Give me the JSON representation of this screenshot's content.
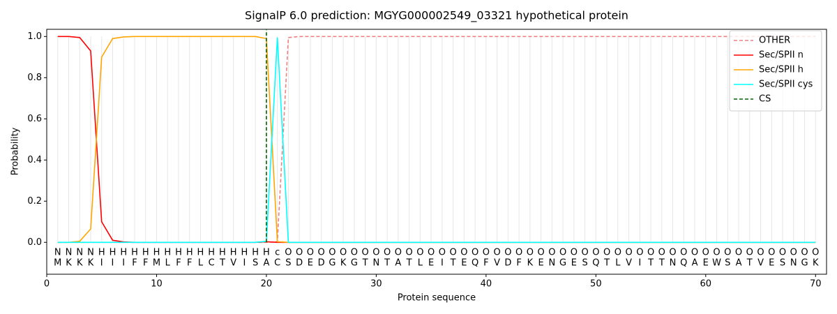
{
  "chart_data": {
    "type": "line",
    "title": "SignalP 6.0 prediction: MGYG000002549_03321 hypothetical protein",
    "xlabel": "Protein sequence",
    "ylabel": "Probability",
    "xlim": [
      0,
      71
    ],
    "ylim": [
      -0.155,
      1.035
    ],
    "xticks": [
      0,
      10,
      20,
      30,
      40,
      50,
      60,
      70
    ],
    "yticks": [
      {
        "value": 0,
        "label": "0.0"
      },
      {
        "value": 0.2,
        "label": "0.2"
      },
      {
        "value": 0.4,
        "label": "0.4"
      },
      {
        "value": 0.6,
        "label": "0.6"
      },
      {
        "value": 0.8,
        "label": "0.8"
      },
      {
        "value": 1,
        "label": "1.0"
      }
    ],
    "legend_loc": "upper right",
    "x": [
      1,
      2,
      3,
      4,
      5,
      6,
      7,
      8,
      9,
      10,
      11,
      12,
      13,
      14,
      15,
      16,
      17,
      18,
      19,
      20,
      21,
      22,
      23,
      24,
      25,
      26,
      27,
      28,
      29,
      30,
      31,
      32,
      33,
      34,
      35,
      36,
      37,
      38,
      39,
      40,
      41,
      42,
      43,
      44,
      45,
      46,
      47,
      48,
      49,
      50,
      51,
      52,
      53,
      54,
      55,
      56,
      57,
      58,
      59,
      60,
      61,
      62,
      63,
      64,
      65,
      66,
      67,
      68,
      69,
      70
    ],
    "sequence": [
      "M",
      "K",
      "K",
      "K",
      "I",
      "I",
      "I",
      "F",
      "F",
      "M",
      "L",
      "F",
      "F",
      "L",
      "C",
      "T",
      "V",
      "I",
      "S",
      "A",
      "C",
      "S",
      "D",
      "E",
      "D",
      "G",
      "K",
      "G",
      "T",
      "N",
      "T",
      "A",
      "T",
      "L",
      "E",
      "I",
      "T",
      "E",
      "Q",
      "F",
      "V",
      "D",
      "F",
      "K",
      "E",
      "N",
      "G",
      "E",
      "S",
      "Q",
      "T",
      "L",
      "V",
      "I",
      "T",
      "T",
      "N",
      "Q",
      "A",
      "E",
      "W",
      "S",
      "A",
      "T",
      "V",
      "E",
      "S",
      "N",
      "G",
      "K"
    ],
    "labels": [
      "N",
      "N",
      "N",
      "N",
      "H",
      "H",
      "H",
      "H",
      "H",
      "H",
      "H",
      "H",
      "H",
      "H",
      "H",
      "H",
      "H",
      "H",
      "H",
      "H",
      "c",
      "O",
      "O",
      "O",
      "O",
      "O",
      "O",
      "O",
      "O",
      "O",
      "O",
      "O",
      "O",
      "O",
      "O",
      "O",
      "O",
      "O",
      "O",
      "O",
      "O",
      "O",
      "O",
      "O",
      "O",
      "O",
      "O",
      "O",
      "O",
      "O",
      "O",
      "O",
      "O",
      "O",
      "O",
      "O",
      "O",
      "O",
      "O",
      "O",
      "O",
      "O",
      "O",
      "O",
      "O",
      "O",
      "O",
      "O",
      "O",
      "O"
    ],
    "label_colors": {
      "N": "#ff0000",
      "H": "#ffa500",
      "c": "#00e5ee",
      "O": "#808080"
    },
    "series": [
      {
        "name": "OTHER",
        "color": "#f08080",
        "dash": true,
        "values": [
          0,
          0,
          0,
          0,
          0,
          0,
          0,
          0,
          0,
          0,
          0,
          0,
          0,
          0,
          0,
          0,
          0,
          0,
          0,
          0,
          0.003,
          0.995,
          1,
          1,
          1,
          1,
          1,
          1,
          1,
          1,
          1,
          1,
          1,
          1,
          1,
          1,
          1,
          1,
          1,
          1,
          1,
          1,
          1,
          1,
          1,
          1,
          1,
          1,
          1,
          1,
          1,
          1,
          1,
          1,
          1,
          1,
          1,
          1,
          1,
          1,
          1,
          1,
          1,
          1,
          1,
          1,
          1,
          1,
          1,
          1
        ]
      },
      {
        "name": "Sec/SPII n",
        "color": "#ff0000",
        "dash": false,
        "values": [
          1,
          1,
          0.995,
          0.93,
          0.1,
          0.01,
          0.002,
          0,
          0,
          0,
          0,
          0,
          0,
          0,
          0,
          0,
          0,
          0,
          0,
          0.003,
          0,
          0,
          0,
          0,
          0,
          0,
          0,
          0,
          0,
          0,
          0,
          0,
          0,
          0,
          0,
          0,
          0,
          0,
          0,
          0,
          0,
          0,
          0,
          0,
          0,
          0,
          0,
          0,
          0,
          0,
          0,
          0,
          0,
          0,
          0,
          0,
          0,
          0,
          0,
          0,
          0,
          0,
          0,
          0,
          0,
          0,
          0,
          0,
          0,
          0
        ]
      },
      {
        "name": "Sec/SPII h",
        "color": "#ffa500",
        "dash": false,
        "values": [
          0,
          0,
          0.005,
          0.065,
          0.9,
          0.99,
          0.998,
          1,
          1,
          1,
          1,
          1,
          1,
          1,
          1,
          1,
          1,
          1,
          1,
          0.99,
          0.003,
          0,
          0,
          0,
          0,
          0,
          0,
          0,
          0,
          0,
          0,
          0,
          0,
          0,
          0,
          0,
          0,
          0,
          0,
          0,
          0,
          0,
          0,
          0,
          0,
          0,
          0,
          0,
          0,
          0,
          0,
          0,
          0,
          0,
          0,
          0,
          0,
          0,
          0,
          0,
          0,
          0,
          0,
          0,
          0,
          0,
          0,
          0,
          0,
          0
        ]
      },
      {
        "name": "Sec/SPII cys",
        "color": "#00ffff",
        "dash": false,
        "values": [
          0,
          0,
          0,
          0,
          0,
          0,
          0,
          0,
          0,
          0,
          0,
          0,
          0,
          0,
          0,
          0,
          0,
          0,
          0,
          0.005,
          0.995,
          0,
          0,
          0,
          0,
          0,
          0,
          0,
          0,
          0,
          0,
          0,
          0,
          0,
          0,
          0,
          0,
          0,
          0,
          0,
          0,
          0,
          0,
          0,
          0,
          0,
          0,
          0,
          0,
          0,
          0,
          0,
          0,
          0,
          0,
          0,
          0,
          0,
          0,
          0,
          0,
          0,
          0,
          0,
          0,
          0,
          0,
          0,
          0,
          0
        ]
      }
    ],
    "cs": {
      "name": "CS",
      "color": "#006400",
      "x": 20
    }
  }
}
